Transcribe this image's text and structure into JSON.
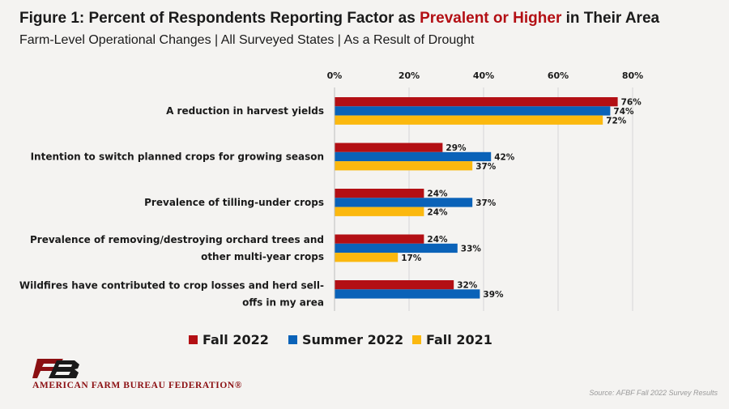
{
  "header": {
    "title_prefix": "Figure 1: Percent of Respondents Reporting Factor as ",
    "title_highlight": "Prevalent or Higher",
    "title_suffix": " in Their Area",
    "subtitle": "Farm-Level Operational Changes | All Surveyed States | As a Result of Drought"
  },
  "colors": {
    "fall_2022": "#b30f14",
    "summer_2022": "#0a62b8",
    "fall_2021": "#fbb80f",
    "highlight": "#b30f14",
    "grid": "#d6d6d6"
  },
  "chart_data": {
    "type": "bar",
    "orientation": "horizontal",
    "categories": [
      [
        "A reduction in harvest yields"
      ],
      [
        "Intention to switch planned crops for growing season"
      ],
      [
        "Prevalence of tilling-under crops"
      ],
      [
        "Prevalence of removing/destroying orchard trees and",
        "other multi-year crops"
      ],
      [
        "Wildfires have contributed to crop losses and herd sell-",
        "offs in my area"
      ]
    ],
    "series": [
      {
        "name": "Fall 2022",
        "values": [
          76,
          29,
          24,
          24,
          32
        ]
      },
      {
        "name": "Summer 2022",
        "values": [
          74,
          42,
          37,
          33,
          39
        ]
      },
      {
        "name": "Fall 2021",
        "values": [
          72,
          37,
          24,
          17,
          null
        ]
      }
    ],
    "x_ticks": [
      "0%",
      "20%",
      "40%",
      "60%",
      "80%"
    ],
    "xlim": [
      0,
      80
    ],
    "value_suffix": "%",
    "grid": true,
    "legend_position": "bottom"
  },
  "footer": {
    "logo_text": "AMERICAN FARM BUREAU FEDERATION®",
    "source": "Source: AFBF Fall 2022 Survey Results"
  }
}
